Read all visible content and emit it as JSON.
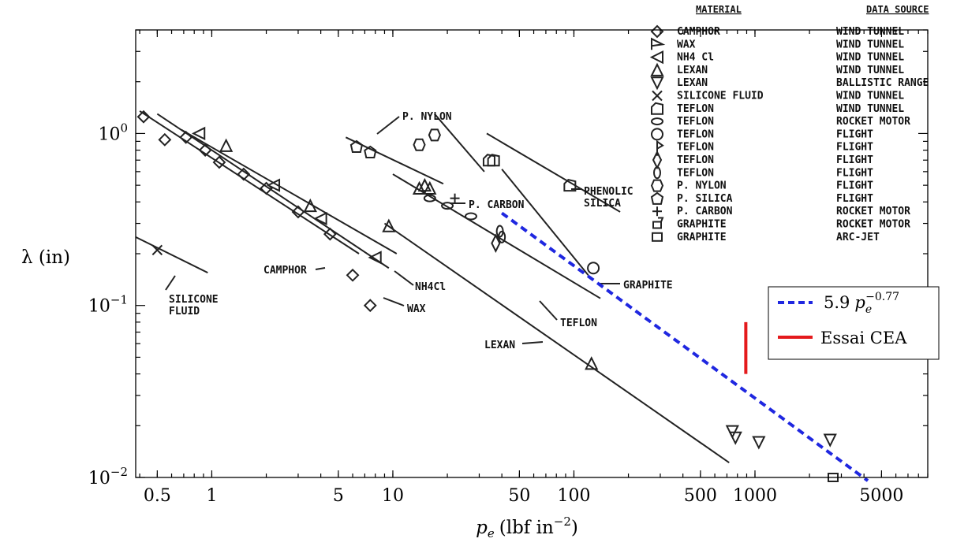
{
  "chart_data": {
    "type": "scatter",
    "x_scale": "log",
    "y_scale": "log",
    "xlabel_base": "p",
    "xlabel_sub": "e",
    "xlabel_unit": "(lbf in",
    "xlabel_exp": "−2",
    "xlabel_close": ")",
    "ylabel": "λ (in)",
    "xlim": [
      0.38,
      9000
    ],
    "ylim": [
      0.01,
      4.0
    ],
    "xticks": [
      {
        "value": 0.5,
        "label": "0.5"
      },
      {
        "value": 1,
        "label": "1"
      },
      {
        "value": 5,
        "label": "5"
      },
      {
        "value": 10,
        "label": "10"
      },
      {
        "value": 50,
        "label": "50"
      },
      {
        "value": 100,
        "label": "100"
      },
      {
        "value": 500,
        "label": "500"
      },
      {
        "value": 1000,
        "label": "1000"
      },
      {
        "value": 5000,
        "label": "5000"
      }
    ],
    "yticks": [
      {
        "value": 0.01,
        "base": "10",
        "exp": "−2"
      },
      {
        "value": 0.1,
        "base": "10",
        "exp": "−1"
      },
      {
        "value": 1,
        "base": "10",
        "exp": "0"
      }
    ],
    "background_figure": {
      "table_headers": [
        "MATERIAL",
        "DATA SOURCE"
      ],
      "table_rows": [
        {
          "material": "CAMPHOR",
          "source": "WIND TUNNEL",
          "symbol": "diamond"
        },
        {
          "material": "WAX",
          "source": "WIND TUNNEL",
          "symbol": "flag-triangle"
        },
        {
          "material": "NH4 Cl",
          "source": "WIND TUNNEL",
          "symbol": "triangle-left"
        },
        {
          "material": "LEXAN",
          "source": "WIND TUNNEL",
          "symbol": "triangle-up"
        },
        {
          "material": "LEXAN",
          "source": "BALLISTIC RANGE",
          "symbol": "triangle-down"
        },
        {
          "material": "SILICONE FLUID",
          "source": "WIND TUNNEL",
          "symbol": "x"
        },
        {
          "material": "TEFLON",
          "source": "WIND TUNNEL",
          "symbol": "house"
        },
        {
          "material": "TEFLON",
          "source": "ROCKET MOTOR",
          "symbol": "ellipse"
        },
        {
          "material": "TEFLON",
          "source": "FLIGHT",
          "symbol": "circle"
        },
        {
          "material": "TEFLON",
          "source": "FLIGHT",
          "symbol": "flag"
        },
        {
          "material": "TEFLON",
          "source": "FLIGHT",
          "symbol": "diamond-tall"
        },
        {
          "material": "TEFLON",
          "source": "FLIGHT",
          "symbol": "ellipse-tall"
        },
        {
          "material": "P. NYLON",
          "source": "FLIGHT",
          "symbol": "hexagon"
        },
        {
          "material": "P. SILICA",
          "source": "FLIGHT",
          "symbol": "pentagon"
        },
        {
          "material": "P. CARBON",
          "source": "ROCKET MOTOR",
          "symbol": "plus"
        },
        {
          "material": "GRAPHITE",
          "source": "ROCKET MOTOR",
          "symbol": "square-flag"
        },
        {
          "material": "GRAPHITE",
          "source": "ARC-JET",
          "symbol": "square"
        }
      ],
      "curve_labels": [
        "SILICONE FLUID",
        "CAMPHOR",
        "NH4Cl",
        "WAX",
        "P. NYLON",
        "P. CARBON",
        "PHENOLIC SILICA",
        "GRAPHITE",
        "TEFLON",
        "LEXAN"
      ],
      "curves": [
        {
          "label": "SILICONE FLUID",
          "from": [
            0.38,
            0.25
          ],
          "to": [
            0.95,
            0.155
          ]
        },
        {
          "label": "CAMPHOR",
          "from": [
            0.4,
            1.35
          ],
          "to": [
            6.5,
            0.2
          ]
        },
        {
          "label": "NH4Cl",
          "from": [
            0.5,
            1.3
          ],
          "to": [
            9.5,
            0.165
          ]
        },
        {
          "label": "WAX",
          "from": [
            0.68,
            1.05
          ],
          "to": [
            10.5,
            0.2
          ]
        },
        {
          "label": "P. NYLON",
          "from": [
            5.5,
            0.95
          ],
          "to": [
            19,
            0.51
          ]
        },
        {
          "label": "TEFLON-A",
          "from": [
            10,
            0.58
          ],
          "to": [
            140,
            0.11
          ]
        },
        {
          "label": "TEFLON-B",
          "from": [
            17,
            1.3
          ],
          "to": [
            32,
            0.6
          ]
        },
        {
          "label": "PHENOLIC SILICA",
          "from": [
            33,
            1.0
          ],
          "to": [
            180,
            0.35
          ]
        },
        {
          "label": "GRAPHITE",
          "from": [
            40,
            0.62
          ],
          "to": [
            120,
            0.15
          ]
        },
        {
          "label": "LEXAN",
          "from": [
            9,
            0.3
          ],
          "to": [
            720,
            0.0122
          ]
        }
      ],
      "points": [
        {
          "symbol": "diamond",
          "x": 0.42,
          "y": 1.25
        },
        {
          "symbol": "diamond",
          "x": 0.55,
          "y": 0.92
        },
        {
          "symbol": "diamond",
          "x": 0.72,
          "y": 0.95
        },
        {
          "symbol": "diamond",
          "x": 0.92,
          "y": 0.8
        },
        {
          "symbol": "diamond",
          "x": 1.1,
          "y": 0.68
        },
        {
          "symbol": "diamond",
          "x": 1.5,
          "y": 0.58
        },
        {
          "symbol": "diamond",
          "x": 2.0,
          "y": 0.48
        },
        {
          "symbol": "diamond",
          "x": 3.0,
          "y": 0.35
        },
        {
          "symbol": "diamond",
          "x": 4.5,
          "y": 0.26
        },
        {
          "symbol": "diamond",
          "x": 6.0,
          "y": 0.15
        },
        {
          "symbol": "diamond",
          "x": 7.5,
          "y": 0.1
        },
        {
          "symbol": "triangle-left",
          "x": 0.85,
          "y": 1.0
        },
        {
          "symbol": "triangle-left",
          "x": 2.2,
          "y": 0.5
        },
        {
          "symbol": "triangle-left",
          "x": 4.0,
          "y": 0.32
        },
        {
          "symbol": "triangle-left",
          "x": 8.0,
          "y": 0.19
        },
        {
          "symbol": "triangle-up",
          "x": 1.2,
          "y": 0.85
        },
        {
          "symbol": "triangle-up",
          "x": 3.5,
          "y": 0.38
        },
        {
          "symbol": "triangle-up",
          "x": 9.5,
          "y": 0.29
        },
        {
          "symbol": "triangle-up",
          "x": 125,
          "y": 0.046
        },
        {
          "symbol": "triangle-down",
          "x": 750,
          "y": 0.0185
        },
        {
          "symbol": "triangle-down",
          "x": 780,
          "y": 0.017
        },
        {
          "symbol": "triangle-down",
          "x": 1050,
          "y": 0.016
        },
        {
          "symbol": "triangle-down",
          "x": 2600,
          "y": 0.0165
        },
        {
          "symbol": "x",
          "x": 0.5,
          "y": 0.21
        },
        {
          "symbol": "pentagon",
          "x": 6.3,
          "y": 0.84
        },
        {
          "symbol": "pentagon",
          "x": 7.5,
          "y": 0.78
        },
        {
          "symbol": "hexagon",
          "x": 14,
          "y": 0.86
        },
        {
          "symbol": "hexagon",
          "x": 17,
          "y": 0.98
        },
        {
          "symbol": "house",
          "x": 34,
          "y": 0.7
        },
        {
          "symbol": "house",
          "x": 36,
          "y": 0.7
        },
        {
          "symbol": "house",
          "x": 95,
          "y": 0.5
        },
        {
          "symbol": "ellipse",
          "x": 16,
          "y": 0.42
        },
        {
          "symbol": "ellipse",
          "x": 20,
          "y": 0.38
        },
        {
          "symbol": "ellipse",
          "x": 27,
          "y": 0.33
        },
        {
          "symbol": "ellipse-tall",
          "x": 39,
          "y": 0.27
        },
        {
          "symbol": "ellipse-tall",
          "x": 40,
          "y": 0.25
        },
        {
          "symbol": "diamond-tall",
          "x": 37,
          "y": 0.23
        },
        {
          "symbol": "circle",
          "x": 128,
          "y": 0.165
        },
        {
          "symbol": "triangle-up",
          "x": 14,
          "y": 0.48
        },
        {
          "symbol": "triangle-up",
          "x": 15,
          "y": 0.5
        },
        {
          "symbol": "triangle-up",
          "x": 16,
          "y": 0.48
        },
        {
          "symbol": "plus",
          "x": 22,
          "y": 0.42
        },
        {
          "symbol": "square",
          "x": 2700,
          "y": 0.01
        }
      ]
    },
    "legend": {
      "placement": "right",
      "entries": [
        {
          "kind": "dashed",
          "color": "#1f27e0",
          "coef": "5.9",
          "var": "p",
          "sub": "e",
          "exp": "−0.77"
        },
        {
          "kind": "solid",
          "color": "#e41a1c",
          "label": "Essai CEA"
        }
      ]
    },
    "series": [
      {
        "kind": "power_law",
        "coef": 5.9,
        "exponent": -0.77,
        "x_range": [
          40,
          4200
        ],
        "color": "#1f27e0",
        "dashed": true
      },
      {
        "kind": "vertical_segment",
        "x": 890,
        "y_range": [
          0.04,
          0.08
        ],
        "color": "#e41a1c"
      }
    ]
  }
}
